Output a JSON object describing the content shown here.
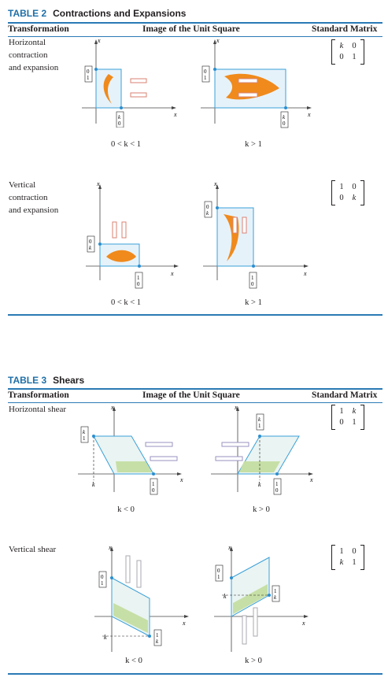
{
  "table2": {
    "number": "TABLE 2",
    "title": "Contractions and Expansions",
    "headers": {
      "transformation": "Transformation",
      "image": "Image of the Unit Square",
      "matrix": "Standard Matrix"
    },
    "rows": [
      {
        "label_lines": [
          "Horizontal",
          "contraction",
          "and expansion"
        ],
        "captions": [
          "0 < k < 1",
          "k > 1"
        ],
        "matrix": [
          "k",
          "0",
          "0",
          "1"
        ]
      },
      {
        "label_lines": [
          "Vertical",
          "contraction",
          "and expansion"
        ],
        "captions": [
          "0 < k < 1",
          "k > 1"
        ],
        "matrix": [
          "1",
          "0",
          "0",
          "k"
        ]
      }
    ]
  },
  "table3": {
    "number": "TABLE 3",
    "title": "Shears",
    "headers": {
      "transformation": "Transformation",
      "image": "Image of the Unit Square",
      "matrix": "Standard Matrix"
    },
    "rows": [
      {
        "label_lines": [
          "Horizontal shear"
        ],
        "captions": [
          "k < 0",
          "k > 0"
        ],
        "matrix": [
          "1",
          "k",
          "0",
          "1"
        ]
      },
      {
        "label_lines": [
          "Vertical shear"
        ],
        "captions": [
          "k < 0",
          "k > 0"
        ],
        "matrix": [
          "1",
          "0",
          "k",
          "1"
        ]
      }
    ]
  },
  "axis_labels": {
    "x": "x",
    "x_sub": "1",
    "y": "x",
    "y_sub": "2",
    "k": "k"
  },
  "vector_entries": {
    "zero": "0",
    "one": "1",
    "k": "k"
  },
  "colors": {
    "accent": "#2a7ab5",
    "square_edge": "#3aa0d8",
    "fish": "#f08a1c",
    "arrow_red": "#d98272",
    "arrow_purple": "#9a92c2",
    "arrow_gray": "#a8a8b0"
  }
}
